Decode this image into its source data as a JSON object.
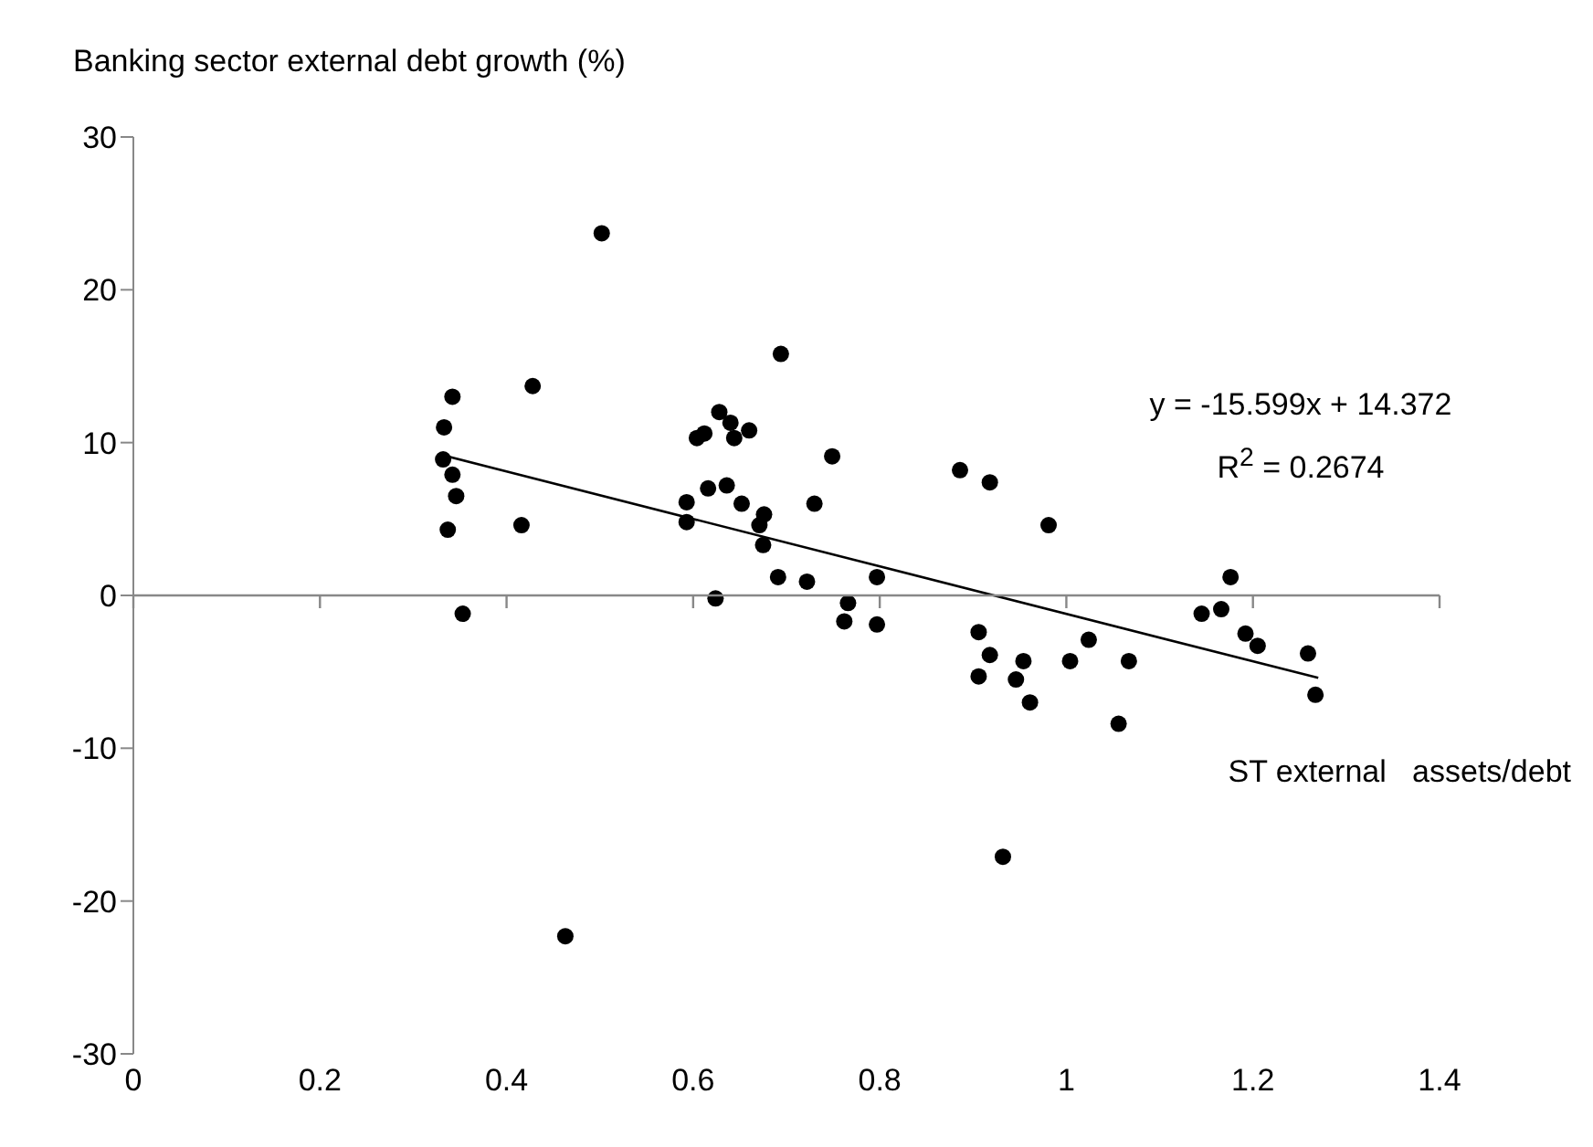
{
  "chart_data": {
    "type": "scatter",
    "ylabel": "Banking sector external debt growth (%)",
    "xlabel": "ST external   assets/debt",
    "annotations": [
      "y = -15.599x + 14.372",
      "R$^{2}$ = 0.2674"
    ],
    "xlim": [
      0,
      1.4
    ],
    "xticks": [
      0,
      0.2,
      0.4,
      0.6,
      0.8,
      1,
      1.2,
      1.4
    ],
    "ylim": [
      -30,
      30
    ],
    "yticks": [
      -30,
      -20,
      -10,
      0,
      10,
      20,
      30
    ],
    "marker": "circle",
    "series": [
      {
        "color": "#000000",
        "x": [
          0.502,
          0.342,
          0.333,
          0.428,
          0.332,
          0.342,
          0.346,
          0.337,
          0.416,
          0.353,
          0.604,
          0.612,
          0.628,
          0.64,
          0.644,
          0.66,
          0.694,
          0.749,
          0.616,
          0.636,
          0.593,
          0.652,
          0.593,
          0.676,
          0.671,
          0.675,
          0.73,
          0.691,
          0.722,
          0.797,
          0.624,
          0.766,
          0.762,
          0.797,
          0.886,
          0.918,
          0.981,
          0.906,
          0.918,
          0.906,
          0.954,
          0.946,
          0.961,
          1.004,
          1.024,
          1.067,
          1.056,
          1.145,
          1.166,
          1.176,
          1.192,
          1.205,
          1.259,
          1.267,
          0.463,
          0.932
        ],
        "values": [
          23.7,
          13.0,
          11.0,
          13.7,
          8.9,
          7.9,
          6.5,
          4.3,
          4.6,
          -1.2,
          10.3,
          10.6,
          12.0,
          11.3,
          10.3,
          10.8,
          15.8,
          9.1,
          7.0,
          7.2,
          6.1,
          6.0,
          4.8,
          5.3,
          4.6,
          3.3,
          6.0,
          1.2,
          0.9,
          1.2,
          -0.2,
          -0.5,
          -1.7,
          -1.9,
          8.2,
          7.4,
          4.6,
          -2.4,
          -3.9,
          -5.3,
          -4.3,
          -5.5,
          -7.0,
          -4.3,
          -2.9,
          -4.3,
          -8.4,
          -1.2,
          -0.9,
          1.2,
          -2.5,
          -3.3,
          -3.8,
          -6.5,
          -22.3,
          -17.1
        ]
      },
      {
        "type": "line",
        "color": "#000000",
        "marker": "none",
        "x": [
          0.33,
          1.27
        ],
        "values": [
          9.2,
          -5.4
        ]
      }
    ]
  }
}
